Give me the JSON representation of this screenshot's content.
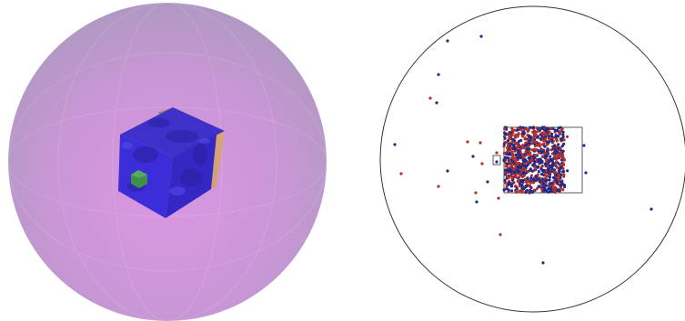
{
  "left_view": {
    "sphere_color": "#c98bd6",
    "cube_front_color": "#3a2bd6",
    "cube_side_color": "#c89b6e",
    "small_cube_color": "#3f8f4a"
  },
  "right_view": {
    "circle_stroke": "#333333",
    "point_colors": {
      "red": "#b0302a",
      "blue": "#1f2a8a"
    }
  }
}
